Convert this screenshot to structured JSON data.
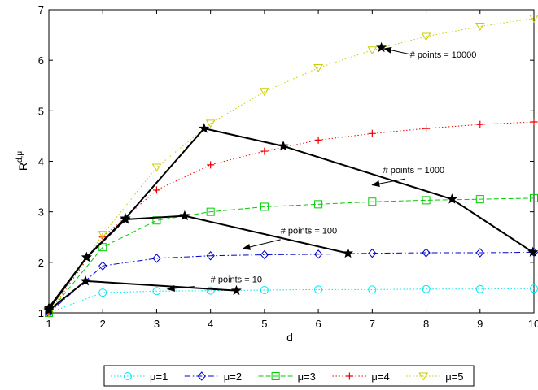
{
  "chart_data": {
    "type": "line",
    "xlabel": "d",
    "ylabel": "R",
    "ylabel_superscript": "d,μ",
    "xlim": [
      1,
      10
    ],
    "ylim": [
      1,
      7
    ],
    "xticks": [
      1,
      2,
      3,
      4,
      5,
      6,
      7,
      8,
      9,
      10
    ],
    "yticks": [
      1,
      2,
      3,
      4,
      5,
      6,
      7
    ],
    "grid": false,
    "legend_placement": "bottom",
    "x": [
      1,
      2,
      3,
      4,
      5,
      6,
      7,
      8,
      9,
      10
    ],
    "series": [
      {
        "name": "μ=1",
        "color": "#00e5ee",
        "marker": "circle",
        "dash": "dotted",
        "values": [
          1.0,
          1.4,
          1.43,
          1.44,
          1.45,
          1.46,
          1.46,
          1.47,
          1.47,
          1.48
        ]
      },
      {
        "name": "μ=2",
        "color": "#0000cc",
        "marker": "diamond",
        "dash": "dashdot",
        "values": [
          1.0,
          1.93,
          2.08,
          2.13,
          2.15,
          2.16,
          2.18,
          2.19,
          2.19,
          2.2
        ]
      },
      {
        "name": "μ=3",
        "color": "#00cc00",
        "marker": "square",
        "dash": "dashed",
        "values": [
          1.0,
          2.3,
          2.83,
          3.0,
          3.1,
          3.15,
          3.2,
          3.23,
          3.25,
          3.27
        ]
      },
      {
        "name": "μ=4",
        "color": "#ee0000",
        "marker": "plus",
        "dash": "dotted",
        "values": [
          1.0,
          2.5,
          3.43,
          3.93,
          4.2,
          4.42,
          4.55,
          4.65,
          4.73,
          4.78
        ]
      },
      {
        "name": "μ=5",
        "color": "#cccc00",
        "marker": "triangle-down",
        "dash": "dotted",
        "values": [
          1.0,
          2.55,
          3.88,
          4.75,
          5.38,
          5.85,
          6.2,
          6.47,
          6.67,
          6.83
        ]
      }
    ],
    "point_curves": [
      {
        "label": "# points = 10",
        "points": [
          [
            1.0,
            1.05
          ],
          [
            1.68,
            1.63
          ],
          [
            4.48,
            1.44
          ]
        ],
        "text_at": [
          4.0,
          1.6
        ],
        "arrow_from": [
          3.7,
          1.52
        ],
        "arrow_to": [
          3.2,
          1.47
        ]
      },
      {
        "label": "# points = 100",
        "points": [
          [
            1.0,
            1.07
          ],
          [
            1.7,
            2.1
          ],
          [
            2.42,
            2.85
          ],
          [
            3.52,
            2.92
          ],
          [
            6.55,
            2.18
          ]
        ],
        "text_at": [
          5.3,
          2.57
        ],
        "arrow_from": [
          5.3,
          2.45
        ],
        "arrow_to": [
          4.6,
          2.27
        ]
      },
      {
        "label": "# points = 1000",
        "points": [
          [
            1.0,
            1.1
          ],
          [
            1.7,
            2.1
          ],
          [
            2.42,
            2.87
          ],
          [
            3.88,
            4.65
          ],
          [
            5.35,
            4.3
          ],
          [
            8.48,
            3.25
          ],
          [
            9.98,
            2.2
          ]
        ],
        "text_at": [
          7.2,
          3.77
        ],
        "arrow_from": [
          7.6,
          3.65
        ],
        "arrow_to": [
          7.0,
          3.53
        ]
      },
      {
        "label": "# points = 10000",
        "points": [
          [
            7.17,
            6.25
          ]
        ],
        "text_at": [
          7.7,
          6.05
        ],
        "arrow_from": [
          7.7,
          6.12
        ],
        "arrow_to": [
          7.22,
          6.23
        ]
      }
    ]
  }
}
